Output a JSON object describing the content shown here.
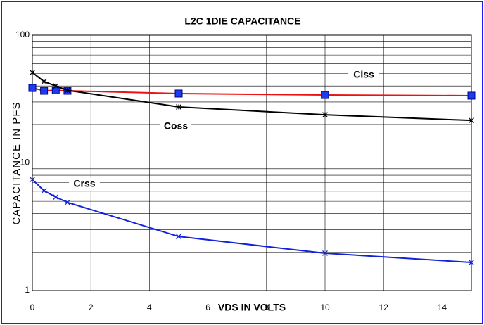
{
  "chart_data": {
    "type": "line",
    "title": "L2C 1DIE  CAPACITANCE",
    "x_label": "VDS IN VOLTS",
    "y_label": "CAPACITANCE IN PFS",
    "x": [
      0,
      0.4,
      0.8,
      1.2,
      5,
      10,
      15
    ],
    "series": [
      {
        "name": "Ciss",
        "color": "#ee1111",
        "marker": "square",
        "values": [
          38.6,
          36.7,
          37,
          36.7,
          34.9,
          34,
          33.6
        ]
      },
      {
        "name": "Coss",
        "color": "#000000",
        "marker": "star",
        "values": [
          51,
          43.3,
          40,
          37,
          27.4,
          23.8,
          21.5
        ]
      },
      {
        "name": "Crss",
        "color": "#1122dd",
        "marker": "x",
        "values": [
          7.4,
          6.05,
          5.4,
          4.9,
          2.65,
          1.96,
          1.66
        ]
      }
    ],
    "xlim": [
      0,
      15
    ],
    "xticks": [
      0,
      2,
      4,
      6,
      8,
      10,
      12,
      14
    ],
    "ylim": [
      1,
      100
    ],
    "yticks": [
      1,
      10,
      100
    ],
    "y_log": true,
    "grid": true,
    "minor_grid": true
  }
}
